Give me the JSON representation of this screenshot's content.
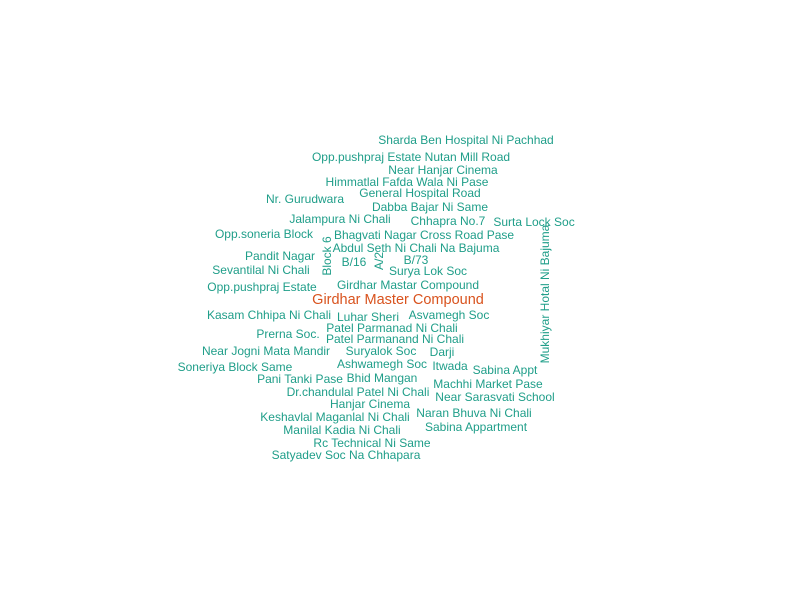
{
  "colors": {
    "background": "#ffffff",
    "term": "#1f9e89",
    "highlight": "#d9531e"
  },
  "words": [
    {
      "text": "Sharda Ben Hospital Ni Pachhad"
    },
    {
      "text": "Opp.pushpraj Estate Nutan Mill Road"
    },
    {
      "text": "Near Hanjar Cinema"
    },
    {
      "text": "Himmatlal Fafda Wala Ni Pase"
    },
    {
      "text": "General Hospital Road"
    },
    {
      "text": "Nr. Gurudwara"
    },
    {
      "text": "Dabba Bajar Ni Same"
    },
    {
      "text": "Jalampura Ni Chali"
    },
    {
      "text": "Chhapra No.7"
    },
    {
      "text": "Surta Lock Soc"
    },
    {
      "text": "Opp.soneria Block"
    },
    {
      "text": "Bhagvati Nagar Cross Road Pase"
    },
    {
      "text": "Block 6"
    },
    {
      "text": "Abdul Seth Ni Chali Na Bajuma"
    },
    {
      "text": "Mukhiyar Hotal Ni Bajuma"
    },
    {
      "text": "Pandit Nagar"
    },
    {
      "text": "B/16"
    },
    {
      "text": "A/2"
    },
    {
      "text": "B/73"
    },
    {
      "text": "Sevantilal Ni Chali"
    },
    {
      "text": "Surya Lok Soc"
    },
    {
      "text": "Opp.pushpraj Estate"
    },
    {
      "text": "Girdhar Mastar Compound"
    },
    {
      "text": "Girdhar Master Compound"
    },
    {
      "text": "Kasam Chhipa Ni Chali"
    },
    {
      "text": "Luhar Sheri"
    },
    {
      "text": "Asvamegh Soc"
    },
    {
      "text": "Patel Parmanad Ni Chali"
    },
    {
      "text": "Prerna Soc."
    },
    {
      "text": "Patel Parmanand Ni Chali"
    },
    {
      "text": "Near Jogni Mata Mandir"
    },
    {
      "text": "Suryalok Soc"
    },
    {
      "text": "Darji"
    },
    {
      "text": "Ashwamegh Soc"
    },
    {
      "text": "Soneriya Block Same"
    },
    {
      "text": "Itwada"
    },
    {
      "text": "Sabina Appt"
    },
    {
      "text": "Pani Tanki Pase"
    },
    {
      "text": "Bhid Mangan"
    },
    {
      "text": "Machhi Market Pase"
    },
    {
      "text": "Dr.chandulal Patel Ni Chali"
    },
    {
      "text": "Near Sarasvati School"
    },
    {
      "text": "Hanjar Cinema"
    },
    {
      "text": "Keshavlal Maganlal Ni Chali"
    },
    {
      "text": "Naran Bhuva Ni Chali"
    },
    {
      "text": "Manilal Kadia Ni Chali"
    },
    {
      "text": "Sabina Appartment"
    },
    {
      "text": "Rc Technical Ni Same"
    },
    {
      "text": "Satyadev Soc Na Chhapara"
    }
  ]
}
